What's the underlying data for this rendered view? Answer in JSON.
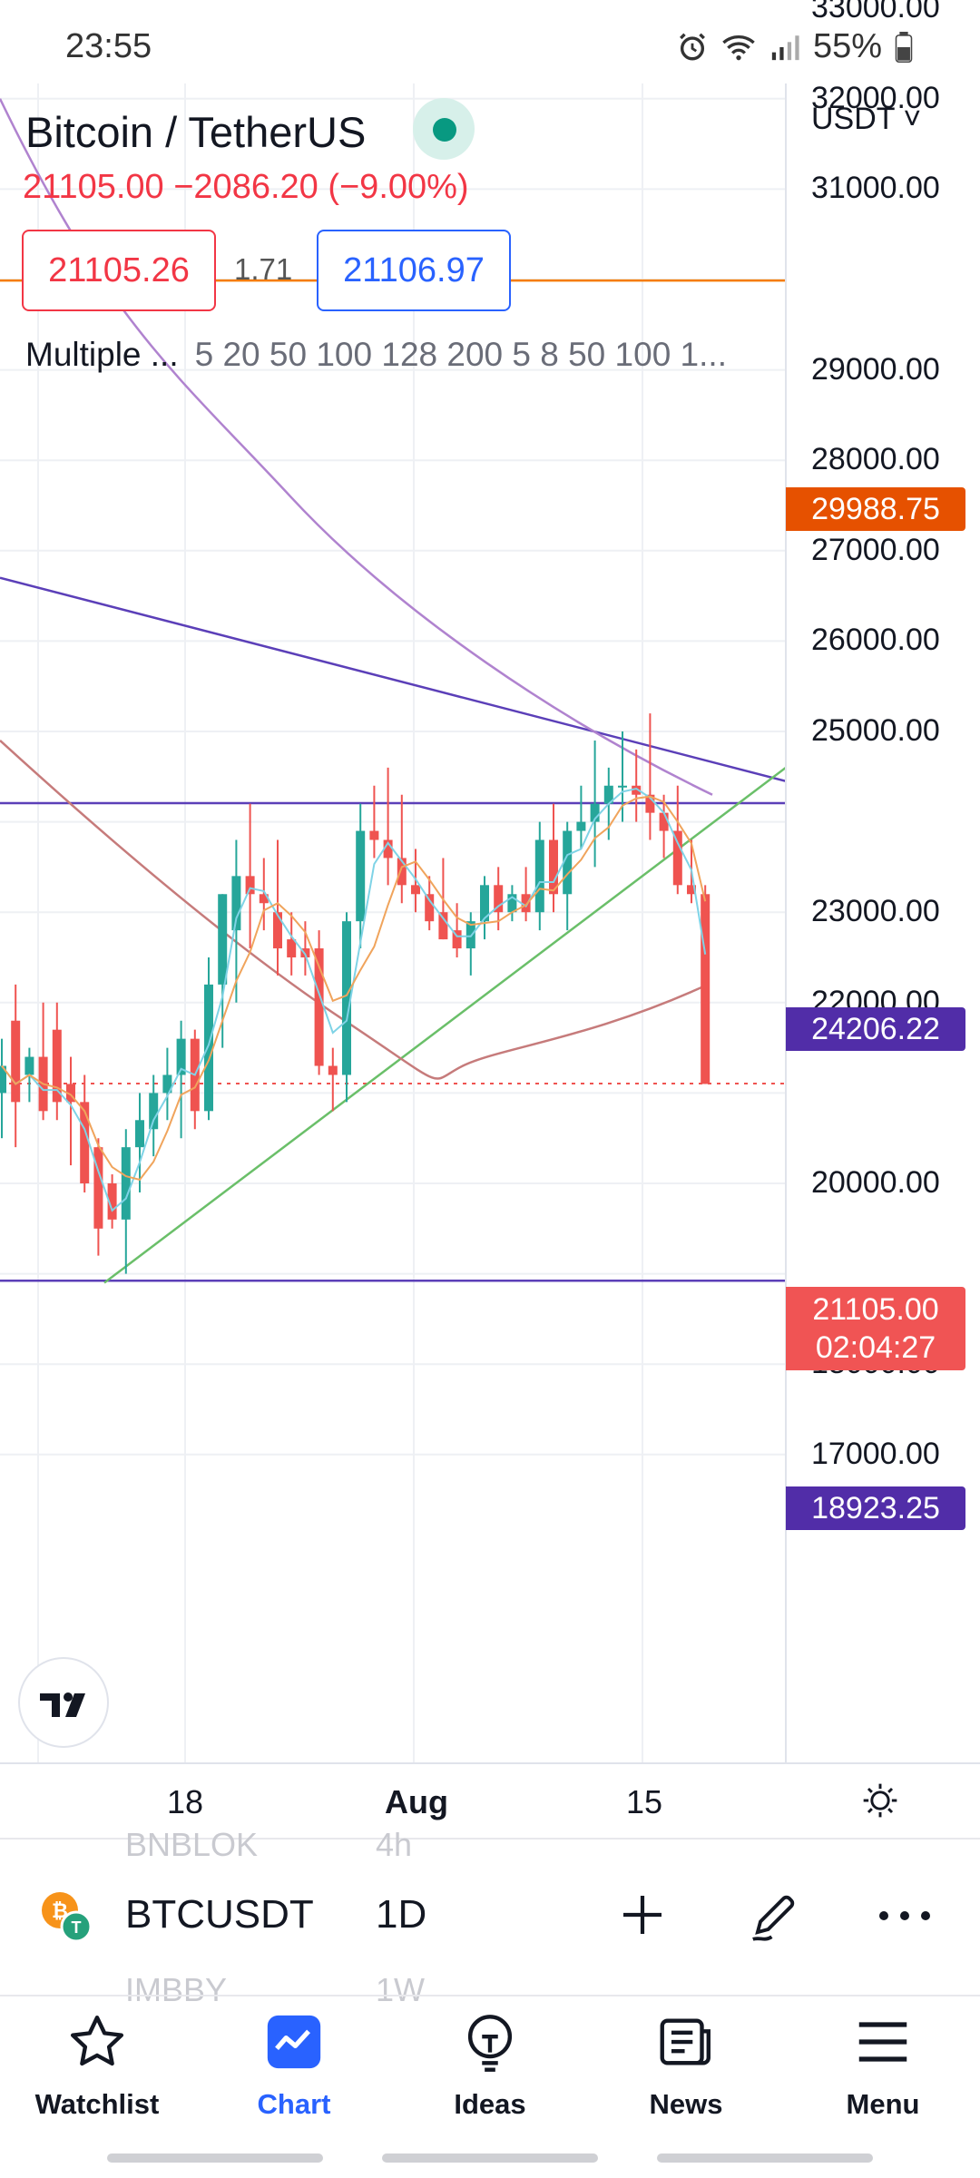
{
  "status_bar": {
    "time": "23:55",
    "battery": "55%"
  },
  "header": {
    "title": "Bitcoin / TetherUS",
    "price_change": "21105.00  −2086.20 (−9.00%)",
    "bid": "21105.26",
    "spread": "1.71",
    "ask": "21106.97",
    "indicators_label": "Multiple ...",
    "indicators_values": "5 20 50 100 128 200 5 8 50 100 1..."
  },
  "scale": {
    "currency": "USDT ˅",
    "ticks": [
      "33000.00",
      "32000.00",
      "31000.00",
      "29000.00",
      "28000.00",
      "27000.00",
      "26000.00",
      "25000.00",
      "23000.00",
      "22000.00",
      "20000.00",
      "18000.00",
      "17000.00"
    ],
    "tags": {
      "orange_line": "29988.75",
      "purple_upper": "24206.22",
      "purple_lower": "18923.25",
      "current_price": "21105.00",
      "countdown": "02:04:27"
    }
  },
  "time_axis": {
    "labels": [
      "18",
      "Aug",
      "15"
    ]
  },
  "symbol_bar": {
    "symbol": "BTCUSDT",
    "interval": "1D",
    "ghost_above": [
      "BNBLOK",
      "4h"
    ],
    "ghost_below": [
      "IMBBY",
      "1W"
    ]
  },
  "nav": {
    "items": [
      {
        "label": "Watchlist",
        "icon": "star-icon"
      },
      {
        "label": "Chart",
        "icon": "chart-icon"
      },
      {
        "label": "Ideas",
        "icon": "lightbulb-icon"
      },
      {
        "label": "News",
        "icon": "newspaper-icon"
      },
      {
        "label": "Menu",
        "icon": "hamburger-icon"
      }
    ],
    "active": "Chart"
  },
  "colors": {
    "up": "#26a69a",
    "down": "#ef5350",
    "accent": "#2962ff",
    "orange_line": "#f57c00",
    "purple_line": "#5b3fb8",
    "trend_green": "#6abf69"
  },
  "chart_data": {
    "type": "candlestick",
    "ylim": [
      16500,
      34000
    ],
    "candles": [
      {
        "o": 21000,
        "h": 21600,
        "l": 20500,
        "c": 21300
      },
      {
        "o": 21800,
        "h": 22200,
        "l": 20400,
        "c": 20900
      },
      {
        "o": 21200,
        "h": 21500,
        "l": 20900,
        "c": 21400
      },
      {
        "o": 21400,
        "h": 22000,
        "l": 20700,
        "c": 20800
      },
      {
        "o": 21700,
        "h": 22000,
        "l": 20700,
        "c": 20900
      },
      {
        "o": 21100,
        "h": 21400,
        "l": 20200,
        "c": 20900
      },
      {
        "o": 20900,
        "h": 21200,
        "l": 19900,
        "c": 20000
      },
      {
        "o": 20400,
        "h": 20500,
        "l": 19200,
        "c": 19500
      },
      {
        "o": 20000,
        "h": 20100,
        "l": 19500,
        "c": 19600
      },
      {
        "o": 19600,
        "h": 20600,
        "l": 19000,
        "c": 20400
      },
      {
        "o": 20400,
        "h": 21000,
        "l": 19900,
        "c": 20700
      },
      {
        "o": 20600,
        "h": 21200,
        "l": 20300,
        "c": 21000
      },
      {
        "o": 21000,
        "h": 21500,
        "l": 20700,
        "c": 21200
      },
      {
        "o": 21200,
        "h": 21800,
        "l": 20500,
        "c": 21600
      },
      {
        "o": 21600,
        "h": 21700,
        "l": 20600,
        "c": 20800
      },
      {
        "o": 20800,
        "h": 22500,
        "l": 20700,
        "c": 22200
      },
      {
        "o": 22200,
        "h": 23200,
        "l": 21500,
        "c": 23200
      },
      {
        "o": 22800,
        "h": 23800,
        "l": 22000,
        "c": 23400
      },
      {
        "o": 23400,
        "h": 24200,
        "l": 22600,
        "c": 23200
      },
      {
        "o": 23200,
        "h": 23600,
        "l": 22800,
        "c": 23100
      },
      {
        "o": 23000,
        "h": 23800,
        "l": 22300,
        "c": 22600
      },
      {
        "o": 22700,
        "h": 23000,
        "l": 22300,
        "c": 22500
      },
      {
        "o": 22600,
        "h": 22900,
        "l": 22300,
        "c": 22500
      },
      {
        "o": 22600,
        "h": 22800,
        "l": 21200,
        "c": 21300
      },
      {
        "o": 21300,
        "h": 21500,
        "l": 20800,
        "c": 21200
      },
      {
        "o": 21200,
        "h": 23000,
        "l": 20900,
        "c": 22900
      },
      {
        "o": 22900,
        "h": 24200,
        "l": 22600,
        "c": 23900
      },
      {
        "o": 23900,
        "h": 24400,
        "l": 23600,
        "c": 23800
      },
      {
        "o": 23800,
        "h": 24600,
        "l": 23300,
        "c": 23600
      },
      {
        "o": 23600,
        "h": 24300,
        "l": 23100,
        "c": 23300
      },
      {
        "o": 23300,
        "h": 23700,
        "l": 23000,
        "c": 23200
      },
      {
        "o": 23200,
        "h": 23400,
        "l": 22800,
        "c": 22900
      },
      {
        "o": 23000,
        "h": 23600,
        "l": 22700,
        "c": 22700
      },
      {
        "o": 22800,
        "h": 23100,
        "l": 22500,
        "c": 22600
      },
      {
        "o": 22600,
        "h": 23000,
        "l": 22300,
        "c": 22900
      },
      {
        "o": 22900,
        "h": 23400,
        "l": 22700,
        "c": 23300
      },
      {
        "o": 23300,
        "h": 23500,
        "l": 22800,
        "c": 23000
      },
      {
        "o": 23000,
        "h": 23300,
        "l": 22900,
        "c": 23200
      },
      {
        "o": 23200,
        "h": 23500,
        "l": 22900,
        "c": 23000
      },
      {
        "o": 23000,
        "h": 24000,
        "l": 22800,
        "c": 23800
      },
      {
        "o": 23800,
        "h": 24200,
        "l": 23000,
        "c": 23200
      },
      {
        "o": 23200,
        "h": 24000,
        "l": 22800,
        "c": 23900
      },
      {
        "o": 23900,
        "h": 24400,
        "l": 23700,
        "c": 24000
      },
      {
        "o": 24000,
        "h": 24900,
        "l": 23500,
        "c": 24200
      },
      {
        "o": 24200,
        "h": 24600,
        "l": 23800,
        "c": 24400
      },
      {
        "o": 24400,
        "h": 25000,
        "l": 24000,
        "c": 24400
      },
      {
        "o": 24400,
        "h": 24800,
        "l": 24000,
        "c": 24300
      },
      {
        "o": 24300,
        "h": 25200,
        "l": 23800,
        "c": 24100
      },
      {
        "o": 24100,
        "h": 24300,
        "l": 23600,
        "c": 23900
      },
      {
        "o": 23900,
        "h": 24400,
        "l": 23200,
        "c": 23300
      },
      {
        "o": 23300,
        "h": 23800,
        "l": 23100,
        "c": 23200
      },
      {
        "o": 23200,
        "h": 23300,
        "l": 21100,
        "c": 21100
      }
    ]
  }
}
